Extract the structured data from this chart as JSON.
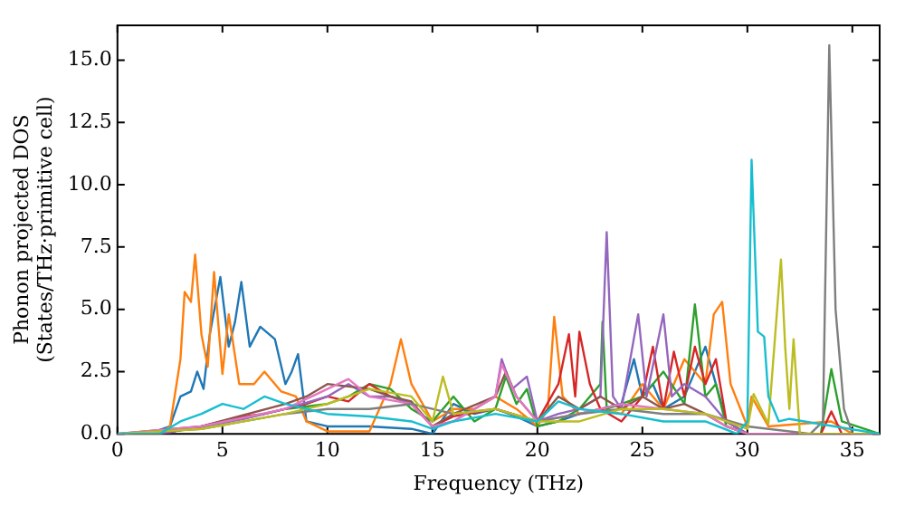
{
  "chart_data": {
    "type": "line",
    "xlabel": "Frequency (THz)",
    "ylabel": "Phonon projected DOS\n(States/THz·primitive cell)",
    "xlim": [
      0,
      36.3
    ],
    "ylim": [
      0,
      16.4
    ],
    "xticks": [
      0,
      5,
      10,
      15,
      20,
      25,
      30,
      35
    ],
    "yticks": [
      {
        "value": 0,
        "label": "0.0"
      },
      {
        "value": 2.5,
        "label": "2.5"
      },
      {
        "value": 5,
        "label": "5.0"
      },
      {
        "value": 7.5,
        "label": "7.5"
      },
      {
        "value": 10,
        "label": "10.0"
      },
      {
        "value": 12.5,
        "label": "12.5"
      },
      {
        "value": 15,
        "label": "15.0"
      }
    ],
    "grid": false,
    "legend": false,
    "series": [
      {
        "color": "#1f77b4",
        "x": [
          0,
          1.5,
          2.5,
          3,
          3.5,
          3.8,
          4.1,
          4.4,
          4.9,
          5.3,
          5.6,
          5.9,
          6.3,
          6.8,
          7.5,
          8,
          8.3,
          8.6,
          9,
          10,
          12,
          14,
          15,
          16,
          17,
          18,
          19,
          20,
          21,
          22,
          23,
          24,
          24.6,
          25,
          25.5,
          26,
          27,
          28,
          29,
          30,
          36.3
        ],
        "values": [
          0,
          0,
          0.3,
          1.5,
          1.7,
          2.5,
          1.8,
          4,
          6.3,
          3.5,
          4.5,
          6.1,
          3.5,
          4.3,
          3.8,
          2,
          2.5,
          3.2,
          0.5,
          0.3,
          0.3,
          0.2,
          0,
          1.2,
          0.8,
          1,
          0.7,
          0.3,
          0.5,
          0.8,
          1,
          1.2,
          3,
          1.5,
          2,
          1,
          1.5,
          3.5,
          0.5,
          0,
          0
        ]
      },
      {
        "color": "#ff7f0e",
        "x": [
          0,
          2,
          2.5,
          3,
          3.2,
          3.5,
          3.7,
          4,
          4.3,
          4.6,
          5,
          5.3,
          5.8,
          6.5,
          7,
          7.8,
          8.5,
          9,
          10,
          12,
          13,
          13.5,
          14,
          15,
          16,
          17,
          18,
          19,
          20,
          20.5,
          20.8,
          21.2,
          22,
          23,
          24,
          25,
          26,
          27,
          28,
          28.4,
          28.8,
          29.2,
          30,
          30.2,
          31,
          34,
          35,
          36.3
        ],
        "values": [
          0,
          0,
          0.3,
          3,
          5.7,
          5.3,
          7.2,
          4,
          2.7,
          6.5,
          2.4,
          4.8,
          2,
          2,
          2.5,
          1.7,
          1.5,
          0.5,
          0.1,
          0.1,
          2,
          3.8,
          2,
          0.5,
          1,
          1,
          1.5,
          1,
          0.3,
          1,
          4.7,
          1.5,
          0.8,
          1,
          0.8,
          2,
          1,
          3,
          2,
          4.8,
          5.3,
          2,
          0.3,
          1.5,
          0.3,
          0.5,
          0,
          0
        ]
      },
      {
        "color": "#2ca02c",
        "x": [
          0,
          2,
          4,
          6,
          8,
          10,
          11,
          12,
          13,
          14,
          15,
          16,
          17,
          18,
          18.5,
          19,
          19.5,
          20,
          21,
          22,
          23,
          23.1,
          23.3,
          24,
          25,
          26,
          27,
          27.5,
          28,
          28.5,
          29,
          30,
          33.5,
          34,
          34.5,
          36.3
        ],
        "values": [
          0,
          0,
          0.3,
          0.6,
          1,
          1.2,
          1.5,
          2,
          1.8,
          1,
          0.5,
          1.5,
          0.5,
          1,
          2.3,
          1.2,
          1.8,
          0.3,
          0.5,
          1,
          2,
          4.5,
          1,
          1.2,
          1.5,
          2.5,
          1.2,
          5.2,
          1.5,
          2,
          0.3,
          0,
          0,
          2.6,
          0.5,
          0
        ]
      },
      {
        "color": "#d62728",
        "x": [
          0,
          2,
          4,
          5,
          6,
          7,
          8,
          9,
          10,
          11,
          12,
          13,
          14,
          15,
          16,
          18,
          20,
          21,
          21.5,
          21.8,
          22,
          22.5,
          23,
          24,
          25,
          25.5,
          26,
          26.5,
          27,
          27.5,
          28,
          28.5,
          29,
          30,
          33.5,
          34,
          34.5,
          36.3
        ],
        "values": [
          0,
          0,
          0.3,
          0.5,
          0.7,
          0.8,
          1,
          1.2,
          1.5,
          1.3,
          2,
          1.5,
          1.2,
          0.3,
          0.7,
          1,
          0.5,
          2,
          4,
          1.5,
          4.1,
          2,
          1,
          0.5,
          1.5,
          3.5,
          1,
          3.3,
          1.5,
          3.5,
          2,
          3,
          0.5,
          0,
          0,
          0.9,
          0,
          0
        ]
      },
      {
        "color": "#9467bd",
        "x": [
          0,
          2,
          4,
          6,
          8,
          10,
          11,
          12,
          13,
          14,
          15,
          16,
          17,
          18,
          18.3,
          18.8,
          19.5,
          20,
          21,
          22,
          23,
          23.3,
          23.6,
          24,
          24.8,
          25.2,
          26,
          26.4,
          27,
          28,
          29,
          30,
          36.3
        ],
        "values": [
          0,
          0,
          0.3,
          0.6,
          1,
          1.5,
          2,
          1.5,
          1.5,
          1.2,
          0.3,
          0.5,
          1,
          1.5,
          3,
          1.8,
          2.3,
          0.5,
          0.8,
          1,
          1.5,
          8.1,
          1.5,
          1,
          4.8,
          1.5,
          4.8,
          1.5,
          2,
          1.5,
          0.5,
          0,
          0
        ]
      },
      {
        "color": "#8c564b",
        "x": [
          0,
          4,
          8,
          9,
          10,
          12,
          13,
          14,
          15,
          16,
          18,
          18.5,
          19,
          20,
          21,
          22,
          23,
          24,
          25,
          26,
          27,
          28,
          29,
          30,
          36.3
        ],
        "values": [
          0,
          0.3,
          1.2,
          1.5,
          2,
          1.8,
          1.5,
          1.3,
          0.3,
          0.8,
          1.5,
          2.5,
          1.5,
          0.5,
          1.5,
          1,
          1.5,
          1,
          1.5,
          1,
          1.2,
          0.8,
          0.3,
          0,
          0
        ]
      },
      {
        "color": "#e377c2",
        "x": [
          0,
          4,
          8,
          10,
          11,
          12,
          14,
          15,
          16,
          18,
          18.3,
          19,
          20,
          22,
          24,
          26,
          28,
          29,
          30,
          36.3
        ],
        "values": [
          0,
          0.3,
          1,
          1.8,
          2.2,
          1.5,
          1.2,
          0.3,
          0.5,
          1.5,
          2.8,
          1.5,
          0.5,
          0.8,
          1.2,
          1,
          0.8,
          0.3,
          0,
          0
        ]
      },
      {
        "color": "#7f7f7f",
        "x": [
          0,
          4,
          8,
          10,
          12,
          14,
          16,
          18,
          20,
          22,
          24,
          26,
          28,
          30,
          33,
          33.6,
          33.9,
          34.2,
          34.6,
          35,
          36.3
        ],
        "values": [
          0,
          0.2,
          0.8,
          1,
          1,
          1.2,
          0.8,
          1,
          0.5,
          0.8,
          1,
          0.8,
          0.8,
          0.3,
          0,
          0.5,
          15.6,
          5,
          1,
          0,
          0
        ]
      },
      {
        "color": "#bcbd22",
        "x": [
          0,
          4,
          8,
          10,
          12,
          14,
          15,
          15.5,
          16,
          18,
          20,
          22,
          24,
          26,
          28,
          30,
          30.3,
          31,
          31.6,
          31.8,
          32,
          32.2,
          32.5,
          36.3
        ],
        "values": [
          0,
          0.2,
          0.8,
          1.2,
          1.8,
          1.5,
          0.5,
          2.3,
          0.8,
          1,
          0.5,
          0.5,
          1,
          1,
          0.8,
          0.2,
          1.6,
          0.4,
          7,
          3.5,
          1,
          3.8,
          0,
          0
        ]
      },
      {
        "color": "#17becf",
        "x": [
          0,
          2,
          3,
          4,
          5,
          6,
          7,
          8,
          9,
          10,
          12,
          14,
          15,
          16,
          18,
          20,
          21,
          22,
          24,
          26,
          28,
          29.5,
          30,
          30.2,
          30.5,
          30.8,
          31,
          31.5,
          32,
          36.3
        ],
        "values": [
          0,
          0,
          0.5,
          0.8,
          1.2,
          1,
          1.5,
          1.2,
          1,
          0.8,
          0.7,
          0.5,
          0.2,
          0.5,
          0.8,
          0.5,
          1.3,
          1,
          0.8,
          0.5,
          0.5,
          0,
          0.5,
          11,
          4.1,
          3.9,
          1.5,
          0.5,
          0.6,
          0
        ]
      }
    ]
  }
}
